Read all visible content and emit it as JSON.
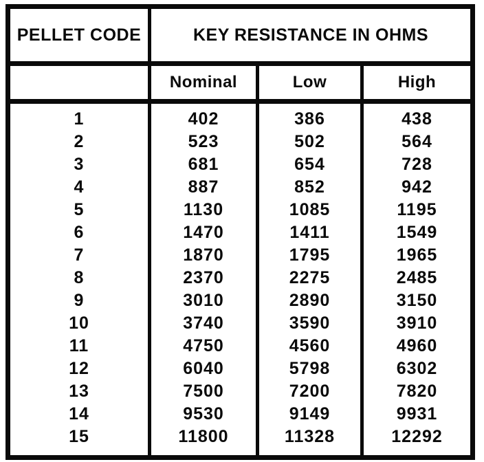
{
  "colors": {
    "ink": "#0a0a0a",
    "paper": "#ffffff"
  },
  "table": {
    "pellet_code_header": "PELLET CODE",
    "group_header": "KEY RESISTANCE IN OHMS",
    "sub_headers": [
      "Nominal",
      "Low",
      "High"
    ],
    "rows": [
      {
        "code": "1",
        "nominal": "402",
        "low": "386",
        "high": "438"
      },
      {
        "code": "2",
        "nominal": "523",
        "low": "502",
        "high": "564"
      },
      {
        "code": "3",
        "nominal": "681",
        "low": "654",
        "high": "728"
      },
      {
        "code": "4",
        "nominal": "887",
        "low": "852",
        "high": "942"
      },
      {
        "code": "5",
        "nominal": "1130",
        "low": "1085",
        "high": "1195"
      },
      {
        "code": "6",
        "nominal": "1470",
        "low": "1411",
        "high": "1549"
      },
      {
        "code": "7",
        "nominal": "1870",
        "low": "1795",
        "high": "1965"
      },
      {
        "code": "8",
        "nominal": "2370",
        "low": "2275",
        "high": "2485"
      },
      {
        "code": "9",
        "nominal": "3010",
        "low": "2890",
        "high": "3150"
      },
      {
        "code": "10",
        "nominal": "3740",
        "low": "3590",
        "high": "3910"
      },
      {
        "code": "11",
        "nominal": "4750",
        "low": "4560",
        "high": "4960"
      },
      {
        "code": "12",
        "nominal": "6040",
        "low": "5798",
        "high": "6302"
      },
      {
        "code": "13",
        "nominal": "7500",
        "low": "7200",
        "high": "7820"
      },
      {
        "code": "14",
        "nominal": "9530",
        "low": "9149",
        "high": "9931"
      },
      {
        "code": "15",
        "nominal": "11800",
        "low": "11328",
        "high": "12292"
      }
    ]
  }
}
